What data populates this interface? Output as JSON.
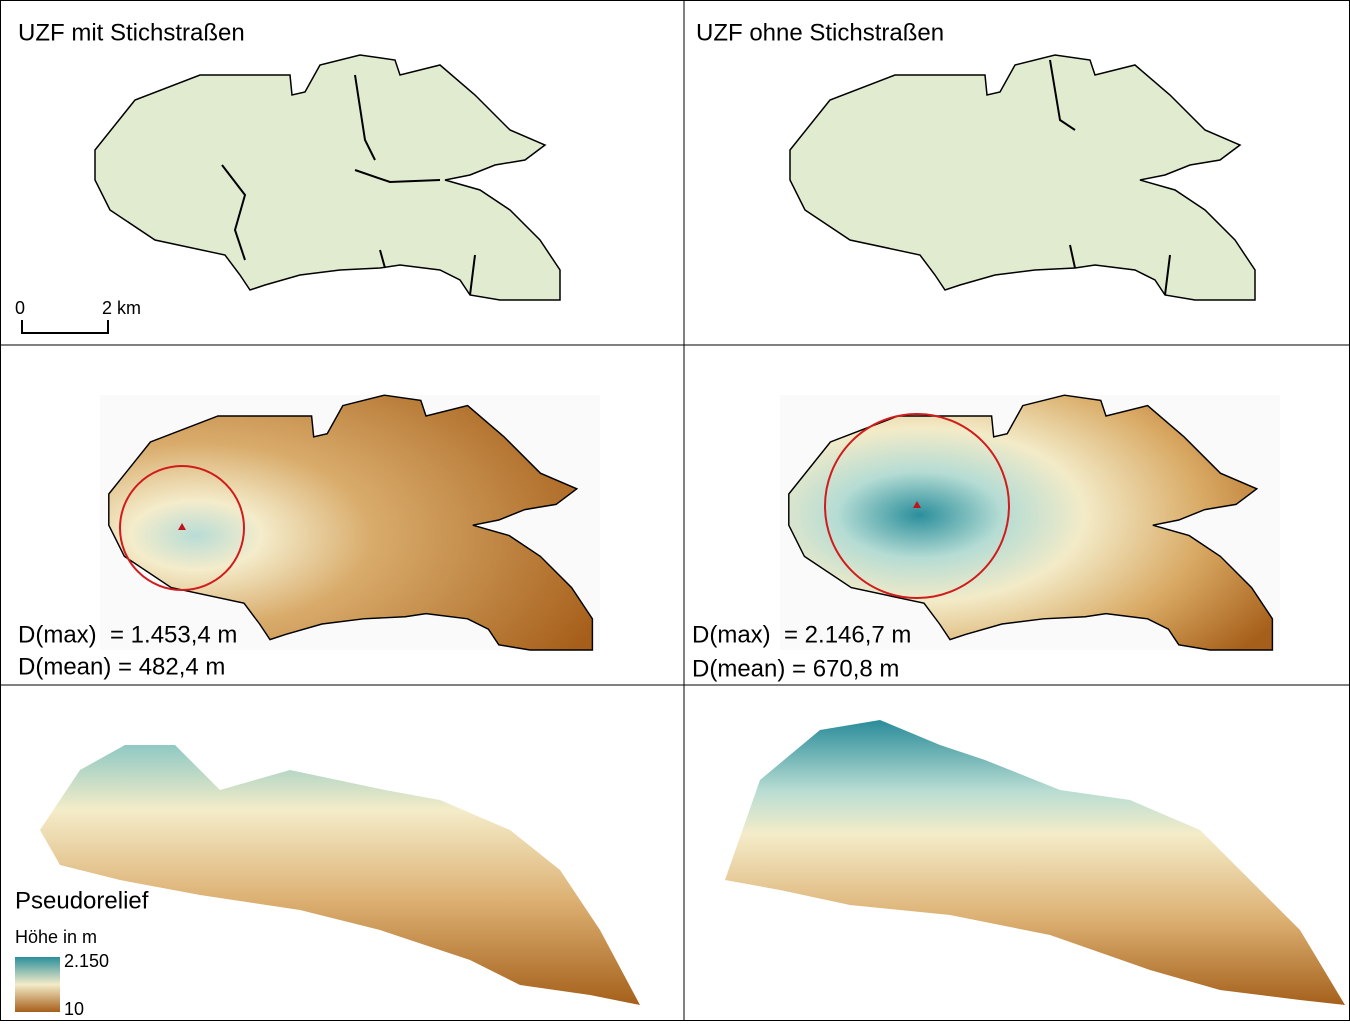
{
  "panels": [
    {
      "title": "UZF mit Stichstraßen",
      "scale": {
        "start": "0",
        "end": "2 km"
      }
    },
    {
      "title": "UZF ohne Stichstraßen"
    },
    {
      "stats": [
        "D(max)  = 1.453,4 m",
        "D(mean) = 482,4 m"
      ]
    },
    {
      "stats": [
        "D(max)  = 2.146,7 m",
        "D(mean) = 670,8 m"
      ]
    },
    {
      "legend": {
        "title": "Pseudorelief",
        "subtitle": "Höhe in m",
        "max": "2.150",
        "min": "10"
      }
    },
    {}
  ]
}
